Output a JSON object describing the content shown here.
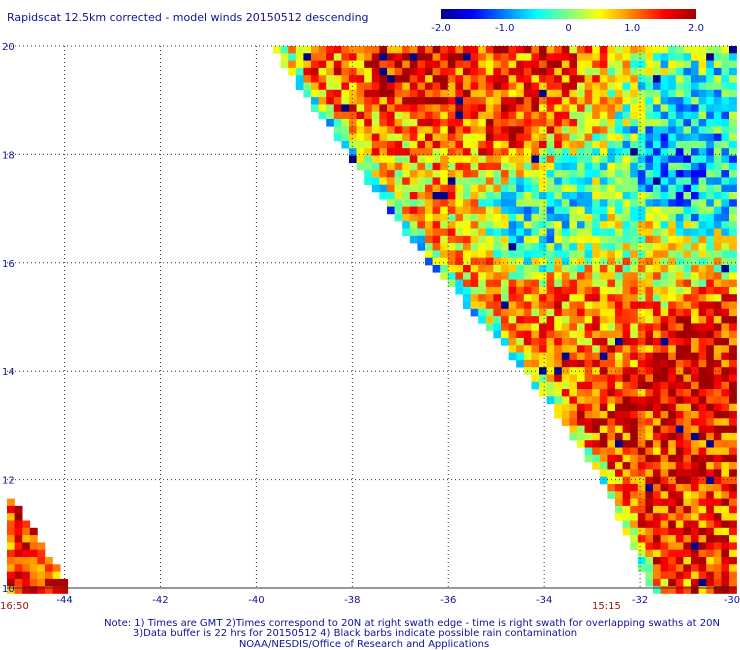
{
  "chart_data": {
    "type": "heatmap",
    "title": "Rapidscat 12.5km corrected - model winds 20150512 descending",
    "xlabel": "",
    "ylabel": "",
    "xlim": [
      -45.2,
      -30
    ],
    "ylim": [
      10,
      20
    ],
    "x_ticks": [
      -44,
      -42,
      -40,
      -38,
      -36,
      -34,
      -32,
      -30
    ],
    "y_ticks": [
      10,
      12,
      14,
      16,
      18,
      20
    ],
    "x_tick_labels": [
      "-44",
      "-42",
      "-40",
      "-38",
      "-36",
      "-34",
      "-32",
      "-30"
    ],
    "y_tick_labels": [
      "10",
      "12",
      "14",
      "16",
      "18",
      "20"
    ],
    "grid": true,
    "grid_style": "dotted",
    "colorbar": {
      "min": -2.0,
      "max": 2.0,
      "ticks": [
        -2.0,
        -1.0,
        0,
        1.0,
        2.0
      ],
      "tick_labels": [
        "-2.0",
        "-1.0",
        "0",
        "1.0",
        "2.0"
      ],
      "stops": [
        "#00008c",
        "#0000ff",
        "#0080ff",
        "#00ffff",
        "#7fff7f",
        "#ffff00",
        "#ff8000",
        "#ff0000",
        "#a00000"
      ]
    },
    "swath_edge_points": [
      [
        -39.7,
        20
      ],
      [
        -38.1,
        18
      ],
      [
        -36.4,
        16
      ],
      [
        -34.4,
        14
      ],
      [
        -32.8,
        12.0
      ],
      [
        -31.8,
        10
      ]
    ],
    "second_swath": {
      "lon_min": -45.2,
      "lon_max": -44.0,
      "lat_min": 10,
      "lat_max": 11.7
    },
    "region_mean_difference": [
      {
        "lon": -36.0,
        "lat": 19.2,
        "value": 1.5
      },
      {
        "lon": -34.6,
        "lat": 19.0,
        "value": 1.3
      },
      {
        "lon": -36.8,
        "lat": 17.5,
        "value": 0.7
      },
      {
        "lon": -34.0,
        "lat": 16.8,
        "value": -0.4
      },
      {
        "lon": -31.2,
        "lat": 17.4,
        "value": -0.8
      },
      {
        "lon": -30.8,
        "lat": 14.2,
        "value": 1.6
      },
      {
        "lon": -33.5,
        "lat": 14.8,
        "value": 1.1
      },
      {
        "lon": -32.2,
        "lat": 12.2,
        "value": 1.4
      },
      {
        "lon": -35.6,
        "lat": 15.2,
        "value": 0.9
      },
      {
        "lon": -31.5,
        "lat": 16.2,
        "value": 0.5
      }
    ],
    "time_labels": {
      "left": "16:50",
      "right": "15:15"
    },
    "time_label_color": "#9b1010",
    "notes": [
      "Note: 1) Times are GMT 2)Times correspond to 20N at right swath edge - time is right swath for overlapping swaths at 20N",
      "3)Data buffer is 22 hrs for 20150512 4) Black barbs indicate possible rain contamination",
      "NOAA/NESDIS/Office of Research and Applications"
    ]
  }
}
